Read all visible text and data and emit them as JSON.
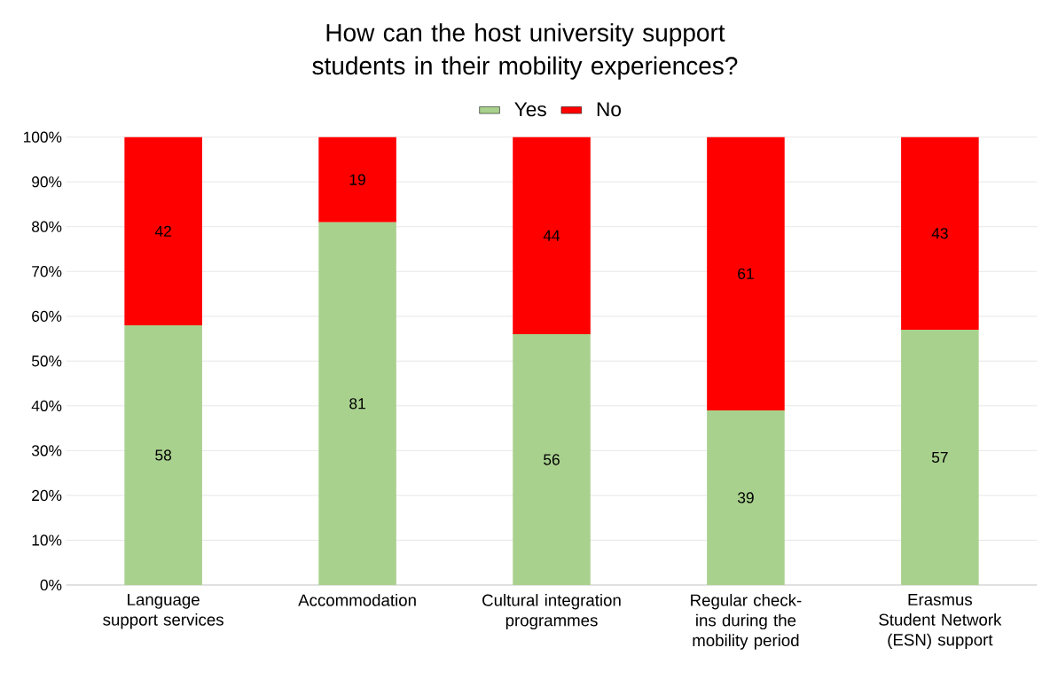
{
  "chart_data": {
    "type": "bar",
    "title": "How can the host university support students in their mobility experiences?",
    "categories": [
      "Language support services",
      "Accommodation",
      "Cultural integration programmes",
      "Regular check-ins during the mobility period",
      "Erasmus Student Network (ESN) support"
    ],
    "stacked": true,
    "series": [
      {
        "name": "Yes",
        "color": "#a9d18e",
        "values": [
          58,
          81,
          56,
          39,
          57
        ]
      },
      {
        "name": "No",
        "color": "#ff0000",
        "values": [
          42,
          19,
          44,
          61,
          43
        ]
      }
    ],
    "ylim": [
      0,
      100
    ],
    "yticks": [
      {
        "value": 0,
        "label": "0%"
      },
      {
        "value": 10,
        "label": "10%"
      },
      {
        "value": 20,
        "label": "20%"
      },
      {
        "value": 30,
        "label": "30%"
      },
      {
        "value": 40,
        "label": "40%"
      },
      {
        "value": 50,
        "label": "50%"
      },
      {
        "value": 60,
        "label": "60%"
      },
      {
        "value": 70,
        "label": "70%"
      },
      {
        "value": 80,
        "label": "80%"
      },
      {
        "value": 90,
        "label": "90%"
      },
      {
        "value": 100,
        "label": "100%"
      }
    ],
    "grid": "y",
    "legend": "top",
    "data_labels": true
  }
}
